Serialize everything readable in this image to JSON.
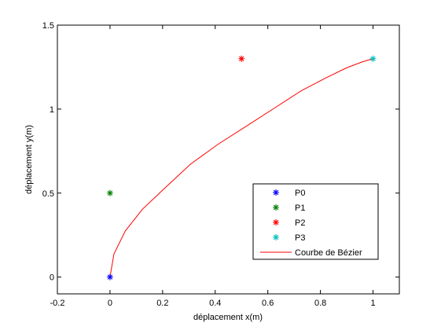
{
  "chart_data": {
    "type": "scatter",
    "title": "",
    "xlabel": "déplacement x(m)",
    "ylabel": "déplacement y(m)",
    "xlim": [
      -0.2,
      1.1
    ],
    "ylim": [
      -0.1,
      1.5
    ],
    "xticks": [
      "-0.2",
      "0",
      "0.2",
      "0.4",
      "0.6",
      "0.8",
      "1"
    ],
    "yticks": [
      "0",
      "0.5",
      "1",
      "1.5"
    ],
    "xtick_values": [
      -0.2,
      0,
      0.2,
      0.4,
      0.6,
      0.8,
      1
    ],
    "ytick_values": [
      0,
      0.5,
      1,
      1.5
    ],
    "grid": false,
    "legend_position": "lower-right",
    "points": [
      {
        "name": "P0",
        "x": 0,
        "y": 0,
        "marker": "*",
        "color": "#0000ff"
      },
      {
        "name": "P1",
        "x": 0,
        "y": 0.5,
        "marker": "*",
        "color": "#008000"
      },
      {
        "name": "P2",
        "x": 0.5,
        "y": 1.3,
        "marker": "*",
        "color": "#ff0000"
      },
      {
        "name": "P3",
        "x": 1,
        "y": 1.3,
        "marker": "*",
        "color": "#00bfbf"
      }
    ],
    "curve": {
      "name": "Courbe de Bézier",
      "type": "line",
      "color": "#ff0000",
      "x": [
        0,
        0.015,
        0.058,
        0.124,
        0.208,
        0.305,
        0.41,
        0.519,
        0.626,
        0.728,
        0.82,
        0.898,
        0.957,
        0.993,
        1
      ],
      "y": [
        0,
        0.137,
        0.274,
        0.405,
        0.529,
        0.671,
        0.79,
        0.899,
        1.007,
        1.11,
        1.185,
        1.245,
        1.28,
        1.297,
        1.3
      ]
    },
    "legend": [
      "P0",
      "P1",
      "P2",
      "P3",
      "Courbe de Bézier"
    ]
  }
}
